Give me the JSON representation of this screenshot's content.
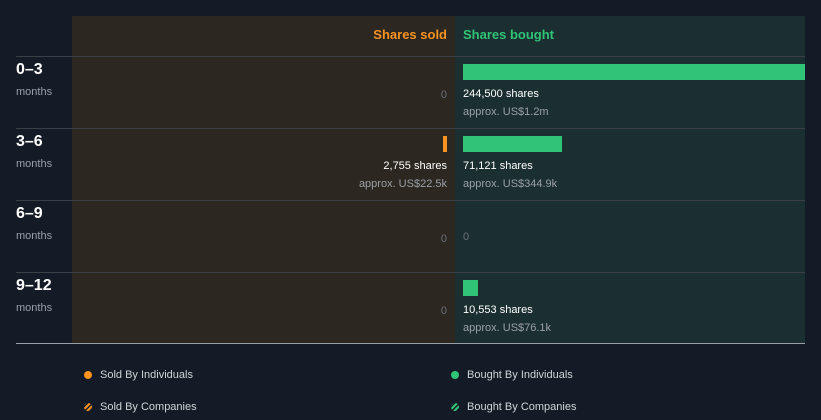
{
  "chart_data": {
    "type": "bar",
    "headers": {
      "sold": "Shares sold",
      "bought": "Shares bought"
    },
    "rows": [
      {
        "period": "0–3",
        "unit": "months",
        "sold": {
          "shares": 0,
          "shares_label": "0",
          "approx": ""
        },
        "bought": {
          "shares": 244500,
          "shares_label": "244,500 shares",
          "approx": "approx. US$1.2m"
        }
      },
      {
        "period": "3–6",
        "unit": "months",
        "sold": {
          "shares": 2755,
          "shares_label": "2,755 shares",
          "approx": "approx. US$22.5k"
        },
        "bought": {
          "shares": 71121,
          "shares_label": "71,121 shares",
          "approx": "approx. US$344.9k"
        }
      },
      {
        "period": "6–9",
        "unit": "months",
        "sold": {
          "shares": 0,
          "shares_label": "0",
          "approx": ""
        },
        "bought": {
          "shares": 0,
          "shares_label": "0",
          "approx": ""
        }
      },
      {
        "period": "9–12",
        "unit": "months",
        "sold": {
          "shares": 0,
          "shares_label": "0",
          "approx": ""
        },
        "bought": {
          "shares": 10553,
          "shares_label": "10,553 shares",
          "approx": "approx. US$76.1k"
        }
      }
    ],
    "legend": [
      {
        "label": "Sold By Individuals",
        "color": "#f7931e",
        "style": "solid"
      },
      {
        "label": "Bought By Individuals",
        "color": "#2fc476",
        "style": "solid"
      },
      {
        "label": "Sold By Companies",
        "color": "#f7931e",
        "style": "hatched"
      },
      {
        "label": "Bought By Companies",
        "color": "#2fc476",
        "style": "hatched"
      }
    ],
    "colors": {
      "sold": "#f7931e",
      "bought": "#2fc476"
    }
  }
}
